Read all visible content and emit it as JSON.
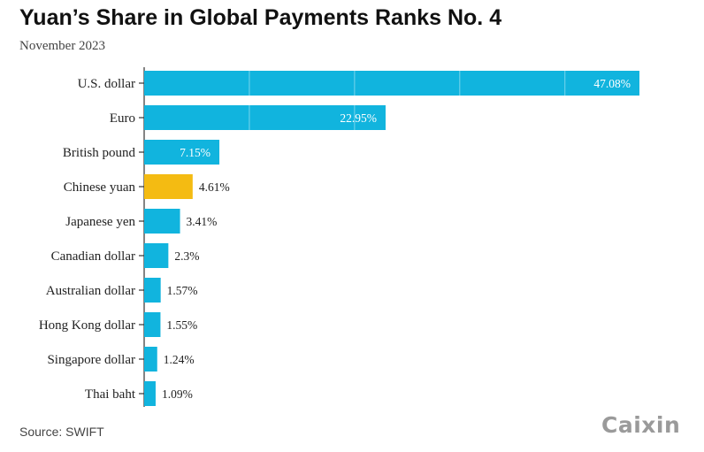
{
  "title": "Yuan’s Share in Global Payments Ranks No. 4",
  "subtitle": "November 2023",
  "source": "Source: SWIFT",
  "logo": "Caixin",
  "colors": {
    "bar": "#11b4de",
    "highlight": "#f4bb12",
    "axis": "#333333",
    "label_inside": "#ffffff",
    "label_outside": "#222222"
  },
  "chart_data": {
    "type": "bar",
    "orientation": "horizontal",
    "title": "Yuan’s Share in Global Payments Ranks No. 4",
    "subtitle": "November 2023",
    "categories": [
      "U.S. dollar",
      "Euro",
      "British pound",
      "Chinese yuan",
      "Japanese yen",
      "Canadian dollar",
      "Australian dollar",
      "Hong Kong dollar",
      "Singapore dollar",
      "Thai baht"
    ],
    "values": [
      47.08,
      22.95,
      7.15,
      4.61,
      3.41,
      2.3,
      1.57,
      1.55,
      1.24,
      1.09
    ],
    "value_labels": [
      "47.08%",
      "22.95%",
      "7.15%",
      "4.61%",
      "3.41%",
      "2.3%",
      "1.57%",
      "1.55%",
      "1.24%",
      "1.09%"
    ],
    "highlight": "Chinese yuan",
    "xlim": [
      0,
      48.5
    ],
    "grid": "vertical white lines every 10 inside bars",
    "grid_step": 10
  }
}
